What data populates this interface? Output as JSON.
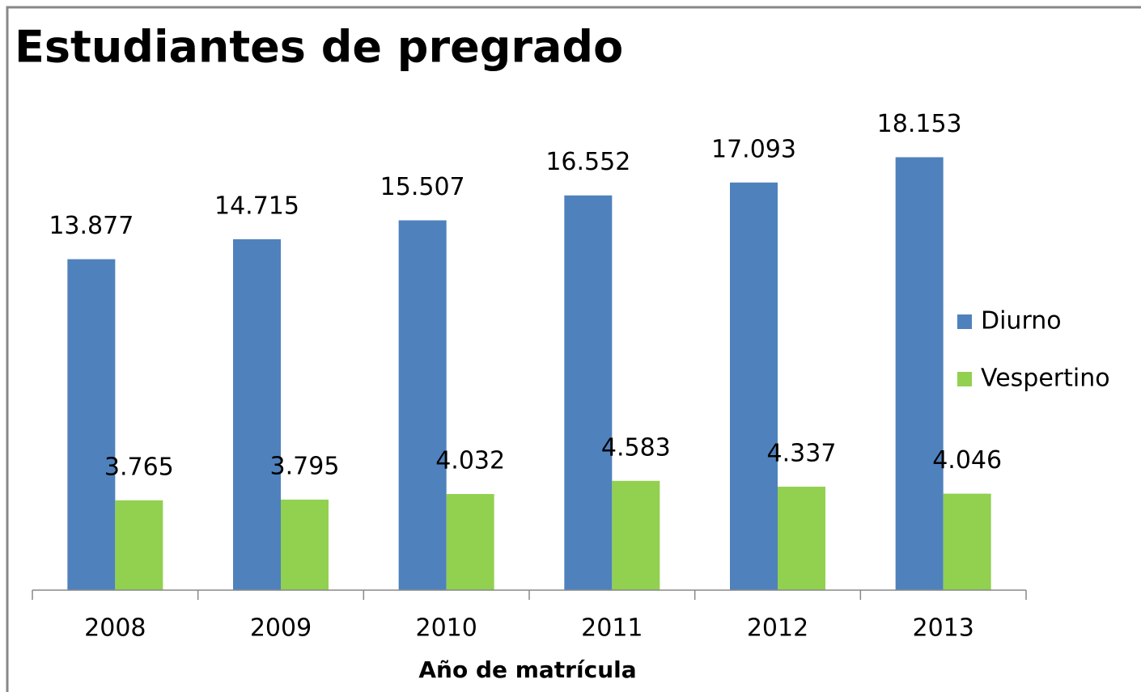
{
  "chart_data": {
    "type": "bar",
    "title": "Estudiantes de pregrado",
    "x_label": "Año de matrícula",
    "categories": [
      "2008",
      "2009",
      "2010",
      "2011",
      "2012",
      "2013"
    ],
    "series": [
      {
        "name": "Diurno",
        "color": "#4f81bd",
        "values": [
          13877,
          14715,
          15507,
          16552,
          17093,
          18153
        ],
        "value_labels": [
          "13.877",
          "14.715",
          "15.507",
          "16.552",
          "17.093",
          "18.153"
        ]
      },
      {
        "name": "Vespertino",
        "color": "#92d050",
        "values": [
          3765,
          3795,
          4032,
          4583,
          4337,
          4046
        ],
        "value_labels": [
          "3.765",
          "3.795",
          "4.032",
          "4.583",
          "4.337",
          "4.046"
        ]
      }
    ],
    "ylim": [
      0,
      20000
    ],
    "legend": "right"
  }
}
